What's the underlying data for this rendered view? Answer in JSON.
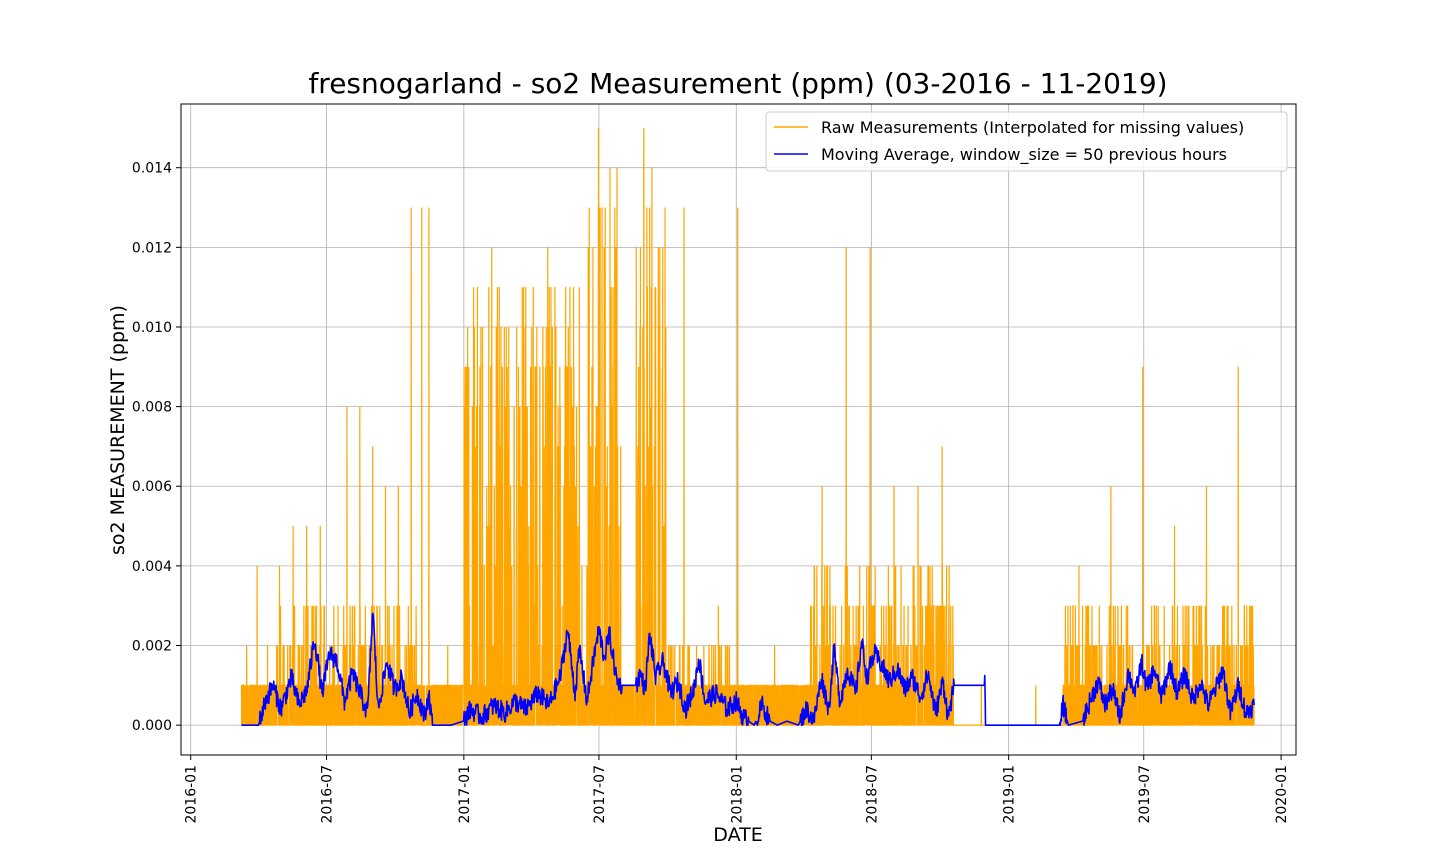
{
  "chart_data": {
    "type": "line",
    "title": "fresnogarland - so2 Measurement (ppm) (03-2016 - 11-2019)",
    "xlabel": "DATE",
    "ylabel": "so2 MEASUREMENT (ppm)",
    "xlim": [
      "2015-12-19",
      "2020-01-21"
    ],
    "ylim": [
      -0.00075,
      0.0156
    ],
    "grid": true,
    "legend_position": "top-right",
    "x_tick_labels": [
      "2016-01",
      "2016-07",
      "2017-01",
      "2017-07",
      "2018-01",
      "2018-07",
      "2019-01",
      "2019-07",
      "2020-01"
    ],
    "x_ticks": [
      "2016-01-01",
      "2016-07-01",
      "2017-01-01",
      "2017-07-01",
      "2018-01-01",
      "2018-07-01",
      "2019-01-01",
      "2019-07-01",
      "2020-01-01"
    ],
    "y_tick_labels": [
      "0.000",
      "0.002",
      "0.004",
      "0.006",
      "0.008",
      "0.010",
      "0.012",
      "0.014"
    ],
    "y_ticks": [
      0,
      0.002,
      0.004,
      0.006,
      0.008,
      0.01,
      0.012,
      0.014
    ],
    "series": [
      {
        "name": "Raw Measurements (Interpolated for missing values)",
        "color": "#FFA500",
        "x_start": "2016-03-09",
        "x_end": "2019-11-26",
        "approx_samples_per_day": 5,
        "segments": [
          {
            "from": "2016-03-09",
            "to": "2016-04-20",
            "base_max": 0.001,
            "spikes": [
              0.002,
              0.004,
              0.002
            ]
          },
          {
            "from": "2016-04-20",
            "to": "2016-07-20",
            "base_max": 0.003,
            "spikes": [
              0.004,
              0.005,
              0.005,
              0.005,
              0.003
            ]
          },
          {
            "from": "2016-07-20",
            "to": "2016-10-31",
            "base_max": 0.003,
            "spikes": [
              0.008,
              0.008,
              0.007,
              0.006,
              0.006,
              0.013
            ]
          },
          {
            "from": "2016-11-01",
            "to": "2016-11-20",
            "base_max": 0.001,
            "spikes": [
              0.013,
              0.013
            ]
          },
          {
            "from": "2016-11-20",
            "to": "2016-12-31",
            "base_max": 0.001,
            "spikes": [
              0.002
            ]
          },
          {
            "from": "2017-01-01",
            "to": "2017-05-31",
            "base_max": 0.011,
            "spikes": [
              0.012,
              0.012
            ]
          },
          {
            "from": "2017-05-31",
            "to": "2017-07-31",
            "base_max": 0.014,
            "spikes": [
              0.015
            ]
          },
          {
            "from": "2017-07-31",
            "to": "2017-08-20",
            "base_max": 0.001,
            "spikes": []
          },
          {
            "from": "2017-08-20",
            "to": "2017-09-30",
            "base_max": 0.014,
            "spikes": [
              0.015,
              0.01
            ]
          },
          {
            "from": "2017-09-30",
            "to": "2017-12-31",
            "base_max": 0.002,
            "spikes": [
              0.013,
              0.003
            ]
          },
          {
            "from": "2018-01-01",
            "to": "2018-01-05",
            "base_max": 0.001,
            "spikes": [
              0.013
            ]
          },
          {
            "from": "2018-01-05",
            "to": "2018-04-10",
            "base_max": 0.001,
            "spikes": [
              0.002
            ]
          },
          {
            "from": "2018-04-10",
            "to": "2018-10-20",
            "base_max": 0.004,
            "spikes": [
              0.006,
              0.012,
              0.012,
              0.006,
              0.006,
              0.007
            ]
          },
          {
            "from": "2018-10-20",
            "to": "2019-03-15",
            "base_max": 0.0,
            "spikes": [
              0.001,
              0.001
            ]
          },
          {
            "from": "2019-03-15",
            "to": "2019-11-26",
            "base_max": 0.003,
            "spikes": [
              0.004,
              0.006,
              0.009,
              0.005,
              0.006,
              0.009
            ]
          }
        ]
      },
      {
        "name": "Moving Average, window_size = 50 previous hours",
        "color": "#0000FF",
        "points": [
          [
            "2016-03-09",
            0.0
          ],
          [
            "2016-04-01",
            0.0
          ],
          [
            "2016-04-10",
            0.0006
          ],
          [
            "2016-04-20",
            0.001
          ],
          [
            "2016-05-01",
            0.0004
          ],
          [
            "2016-05-15",
            0.0012
          ],
          [
            "2016-05-25",
            0.0005
          ],
          [
            "2016-06-05",
            0.0009
          ],
          [
            "2016-06-15",
            0.0022
          ],
          [
            "2016-06-25",
            0.0008
          ],
          [
            "2016-07-05",
            0.0018
          ],
          [
            "2016-07-15",
            0.0016
          ],
          [
            "2016-07-25",
            0.0006
          ],
          [
            "2016-08-05",
            0.0013
          ],
          [
            "2016-08-15",
            0.0008
          ],
          [
            "2016-08-25",
            0.0003
          ],
          [
            "2016-09-01",
            0.0029
          ],
          [
            "2016-09-08",
            0.0004
          ],
          [
            "2016-09-20",
            0.0016
          ],
          [
            "2016-09-30",
            0.0009
          ],
          [
            "2016-10-10",
            0.0012
          ],
          [
            "2016-10-20",
            0.0003
          ],
          [
            "2016-10-30",
            0.0008
          ],
          [
            "2016-11-10",
            0.0002
          ],
          [
            "2016-11-15",
            0.0008
          ],
          [
            "2016-11-20",
            0.0
          ],
          [
            "2016-12-15",
            0.0
          ],
          [
            "2016-12-31",
            0.0001
          ],
          [
            "2017-01-10",
            0.0004
          ],
          [
            "2017-01-25",
            0.0002
          ],
          [
            "2017-02-10",
            0.0005
          ],
          [
            "2017-02-25",
            0.0003
          ],
          [
            "2017-03-10",
            0.0006
          ],
          [
            "2017-03-25",
            0.0004
          ],
          [
            "2017-04-10",
            0.0008
          ],
          [
            "2017-04-25",
            0.0005
          ],
          [
            "2017-05-10",
            0.0012
          ],
          [
            "2017-05-20",
            0.0024
          ],
          [
            "2017-05-30",
            0.0008
          ],
          [
            "2017-06-05",
            0.0019
          ],
          [
            "2017-06-15",
            0.0006
          ],
          [
            "2017-06-25",
            0.0018
          ],
          [
            "2017-07-01",
            0.0024
          ],
          [
            "2017-07-08",
            0.0017
          ],
          [
            "2017-07-15",
            0.0023
          ],
          [
            "2017-07-25",
            0.0011
          ],
          [
            "2017-08-01",
            0.001
          ],
          [
            "2017-08-20",
            0.001
          ],
          [
            "2017-08-25",
            0.0013
          ],
          [
            "2017-09-01",
            0.0009
          ],
          [
            "2017-09-07",
            0.0023
          ],
          [
            "2017-09-15",
            0.0012
          ],
          [
            "2017-09-25",
            0.0016
          ],
          [
            "2017-10-05",
            0.0008
          ],
          [
            "2017-10-15",
            0.0011
          ],
          [
            "2017-10-25",
            0.0004
          ],
          [
            "2017-11-05",
            0.0009
          ],
          [
            "2017-11-12",
            0.0017
          ],
          [
            "2017-11-20",
            0.0006
          ],
          [
            "2017-12-05",
            0.0008
          ],
          [
            "2017-12-20",
            0.0004
          ],
          [
            "2018-01-01",
            0.0006
          ],
          [
            "2018-01-10",
            0.0002
          ],
          [
            "2018-01-25",
            0.0
          ],
          [
            "2018-02-05",
            0.0005
          ],
          [
            "2018-02-15",
            0.0001
          ],
          [
            "2018-02-25",
            0.0
          ],
          [
            "2018-03-10",
            0.0001
          ],
          [
            "2018-03-25",
            0.0
          ],
          [
            "2018-04-05",
            0.0004
          ],
          [
            "2018-04-15",
            0.0001
          ],
          [
            "2018-04-25",
            0.0012
          ],
          [
            "2018-05-05",
            0.0004
          ],
          [
            "2018-05-12",
            0.0019
          ],
          [
            "2018-05-20",
            0.0006
          ],
          [
            "2018-05-30",
            0.0014
          ],
          [
            "2018-06-10",
            0.0008
          ],
          [
            "2018-06-18",
            0.0021
          ],
          [
            "2018-06-25",
            0.0012
          ],
          [
            "2018-07-05",
            0.0018
          ],
          [
            "2018-07-15",
            0.0015
          ],
          [
            "2018-07-25",
            0.0011
          ],
          [
            "2018-08-05",
            0.0014
          ],
          [
            "2018-08-15",
            0.0009
          ],
          [
            "2018-08-25",
            0.0012
          ],
          [
            "2018-09-05",
            0.0007
          ],
          [
            "2018-09-15",
            0.0013
          ],
          [
            "2018-09-25",
            0.0003
          ],
          [
            "2018-10-05",
            0.0011
          ],
          [
            "2018-10-12",
            0.0002
          ],
          [
            "2018-10-20",
            0.001
          ],
          [
            "2018-11-30",
            0.001
          ],
          [
            "2018-12-01",
            0.0
          ],
          [
            "2019-03-10",
            0.0
          ],
          [
            "2019-03-15",
            0.0005
          ],
          [
            "2019-03-22",
            0.0
          ],
          [
            "2019-04-10",
            0.0001
          ],
          [
            "2019-04-20",
            0.0006
          ],
          [
            "2019-05-01",
            0.0011
          ],
          [
            "2019-05-10",
            0.0005
          ],
          [
            "2019-05-20",
            0.0009
          ],
          [
            "2019-05-30",
            0.0002
          ],
          [
            "2019-06-10",
            0.0013
          ],
          [
            "2019-06-20",
            0.0008
          ],
          [
            "2019-06-28",
            0.0016
          ],
          [
            "2019-07-05",
            0.0009
          ],
          [
            "2019-07-15",
            0.0014
          ],
          [
            "2019-07-25",
            0.0007
          ],
          [
            "2019-08-05",
            0.0015
          ],
          [
            "2019-08-15",
            0.0008
          ],
          [
            "2019-08-25",
            0.0013
          ],
          [
            "2019-09-05",
            0.0006
          ],
          [
            "2019-09-15",
            0.0011
          ],
          [
            "2019-09-25",
            0.0005
          ],
          [
            "2019-10-05",
            0.0009
          ],
          [
            "2019-10-15",
            0.0014
          ],
          [
            "2019-10-25",
            0.0003
          ],
          [
            "2019-11-05",
            0.001
          ],
          [
            "2019-11-15",
            0.0003
          ],
          [
            "2019-11-26",
            0.0005
          ]
        ]
      }
    ]
  }
}
